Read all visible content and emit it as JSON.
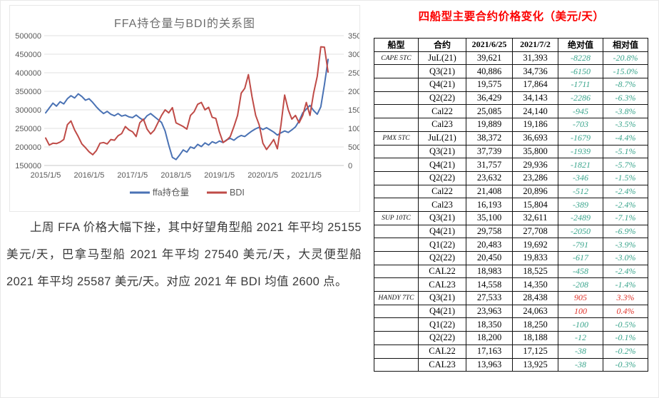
{
  "chart": {
    "title": "FFA持仓量与BDI的关系图",
    "legend": [
      {
        "label": "ffa持仓量",
        "color": "#4a72b4"
      },
      {
        "label": "BDI",
        "color": "#bf4b47"
      }
    ]
  },
  "chart_data": {
    "type": "line",
    "title": "FFA持仓量与BDI的关系图",
    "x_unit": "monthly, 2015-01 to 2021-07",
    "x_tick_labels": [
      "2015/1/5",
      "2016/1/5",
      "2017/1/5",
      "2018/1/5",
      "2019/1/5",
      "2020/1/5",
      "2021/1/5"
    ],
    "x_tick_indices": [
      0,
      12,
      24,
      36,
      48,
      60,
      72
    ],
    "left_axis": {
      "min": 150000,
      "max": 500000,
      "step": 50000,
      "ticks": [
        500000,
        450000,
        400000,
        350000,
        300000,
        250000,
        200000,
        150000
      ]
    },
    "right_axis": {
      "min": 0,
      "max": 3500,
      "step": 500,
      "ticks": [
        3500,
        3000,
        2500,
        2000,
        1500,
        1000,
        500,
        0
      ]
    },
    "grid": true,
    "legend_position": "bottom",
    "series": [
      {
        "name": "ffa持仓量",
        "axis": "left",
        "color": "#4a72b4",
        "values": [
          292000,
          305000,
          318000,
          310000,
          322000,
          316000,
          330000,
          338000,
          332000,
          343000,
          336000,
          326000,
          330000,
          320000,
          308000,
          298000,
          290000,
          296000,
          288000,
          284000,
          290000,
          283000,
          286000,
          281000,
          279000,
          286000,
          278000,
          272000,
          284000,
          290000,
          282000,
          274000,
          266000,
          243000,
          205000,
          172000,
          166000,
          178000,
          192000,
          186000,
          200000,
          196000,
          207000,
          201000,
          211000,
          205000,
          214000,
          210000,
          216000,
          212000,
          219000,
          223000,
          218000,
          226000,
          231000,
          228000,
          236000,
          243000,
          249000,
          253000,
          247000,
          252000,
          246000,
          240000,
          232000,
          238000,
          243000,
          239000,
          246000,
          254000,
          270000,
          292000,
          302000,
          312000,
          298000,
          288000,
          308000,
          368000,
          436000
        ]
      },
      {
        "name": "BDI",
        "axis": "right",
        "color": "#bf4b47",
        "values": [
          740,
          550,
          600,
          590,
          630,
          700,
          1100,
          1200,
          960,
          780,
          580,
          480,
          370,
          290,
          400,
          600,
          620,
          580,
          700,
          680,
          800,
          860,
          1050,
          960,
          910,
          780,
          1150,
          1250,
          980,
          850,
          950,
          1150,
          1350,
          1500,
          1420,
          1560,
          1150,
          1100,
          1050,
          980,
          1350,
          1450,
          1650,
          1700,
          1500,
          1570,
          1300,
          1270,
          900,
          620,
          680,
          780,
          1050,
          1350,
          1950,
          2080,
          2450,
          1850,
          1350,
          1090,
          600,
          430,
          560,
          700,
          450,
          1100,
          1900,
          1500,
          1250,
          1350,
          1150,
          1350,
          1700,
          1350,
          1950,
          2400,
          3200,
          3190,
          2520
        ]
      }
    ]
  },
  "paragraph": "上周 FFA 价格大幅下挫，其中好望角型船 2021 年平均 25155 美元/天，巴拿马型船 2021 年平均 27540 美元/天，大灵便型船 2021 年平均 25587 美元/天。对应 2021 年 BDI 均值 2600 点。",
  "table": {
    "title": "四船型主要合约价格变化（美元/天）",
    "headers": [
      "船型",
      "合约",
      "2021/6/25",
      "2021/7/2",
      "绝对值",
      "相对值"
    ],
    "colors": {
      "negative": "#3aa58c",
      "positive": "#e0352c",
      "title": "#fb0000"
    },
    "groups": [
      {
        "ship": "CAPE 5TC",
        "rows": [
          [
            "JuL(21)",
            "39,621",
            "31,393",
            "-8228",
            "-20.8%"
          ],
          [
            "Q3(21)",
            "40,886",
            "34,736",
            "-6150",
            "-15.0%"
          ],
          [
            "Q4(21)",
            "19,575",
            "17,864",
            "-1711",
            "-8.7%"
          ],
          [
            "Q2(22)",
            "36,429",
            "34,143",
            "-2286",
            "-6.3%"
          ],
          [
            "Cal22",
            "25,085",
            "24,140",
            "-945",
            "-3.8%"
          ],
          [
            "Cal23",
            "19,889",
            "19,186",
            "-703",
            "-3.5%"
          ]
        ]
      },
      {
        "ship": "PMX 5TC",
        "rows": [
          [
            "JuL(21)",
            "38,372",
            "36,693",
            "-1679",
            "-4.4%"
          ],
          [
            "Q3(21)",
            "37,739",
            "35,800",
            "-1939",
            "-5.1%"
          ],
          [
            "Q4(21)",
            "31,757",
            "29,936",
            "-1821",
            "-5.7%"
          ],
          [
            "Q2(22)",
            "23,632",
            "23,286",
            "-346",
            "-1.5%"
          ],
          [
            "Cal22",
            "21,408",
            "20,896",
            "-512",
            "-2.4%"
          ],
          [
            "Cal23",
            "16,193",
            "15,804",
            "-389",
            "-2.4%"
          ]
        ]
      },
      {
        "ship": "SUP 10TC",
        "rows": [
          [
            "Q3(21)",
            "35,100",
            "32,611",
            "-2489",
            "-7.1%"
          ],
          [
            "Q4(21)",
            "29,758",
            "27,708",
            "-2050",
            "-6.9%"
          ],
          [
            "Q1(22)",
            "20,483",
            "19,692",
            "-791",
            "-3.9%"
          ],
          [
            "Q2(22)",
            "20,450",
            "19,833",
            "-617",
            "-3.0%"
          ],
          [
            "CAL22",
            "18,983",
            "18,525",
            "-458",
            "-2.4%"
          ],
          [
            "CAL23",
            "14,558",
            "14,350",
            "-208",
            "-1.4%"
          ]
        ]
      },
      {
        "ship": "HANDY 7TC",
        "rows": [
          [
            "Q3(21)",
            "27,533",
            "28,438",
            "905",
            "3.3%"
          ],
          [
            "Q4(21)",
            "23,963",
            "24,063",
            "100",
            "0.4%"
          ],
          [
            "Q1(22)",
            "18,350",
            "18,250",
            "-100",
            "-0.5%"
          ],
          [
            "Q2(22)",
            "18,200",
            "18,188",
            "-12",
            "-0.1%"
          ],
          [
            "CAL22",
            "17,163",
            "17,125",
            "-38",
            "-0.2%"
          ],
          [
            "CAL23",
            "13,963",
            "13,925",
            "-38",
            "-0.3%"
          ]
        ]
      }
    ]
  }
}
